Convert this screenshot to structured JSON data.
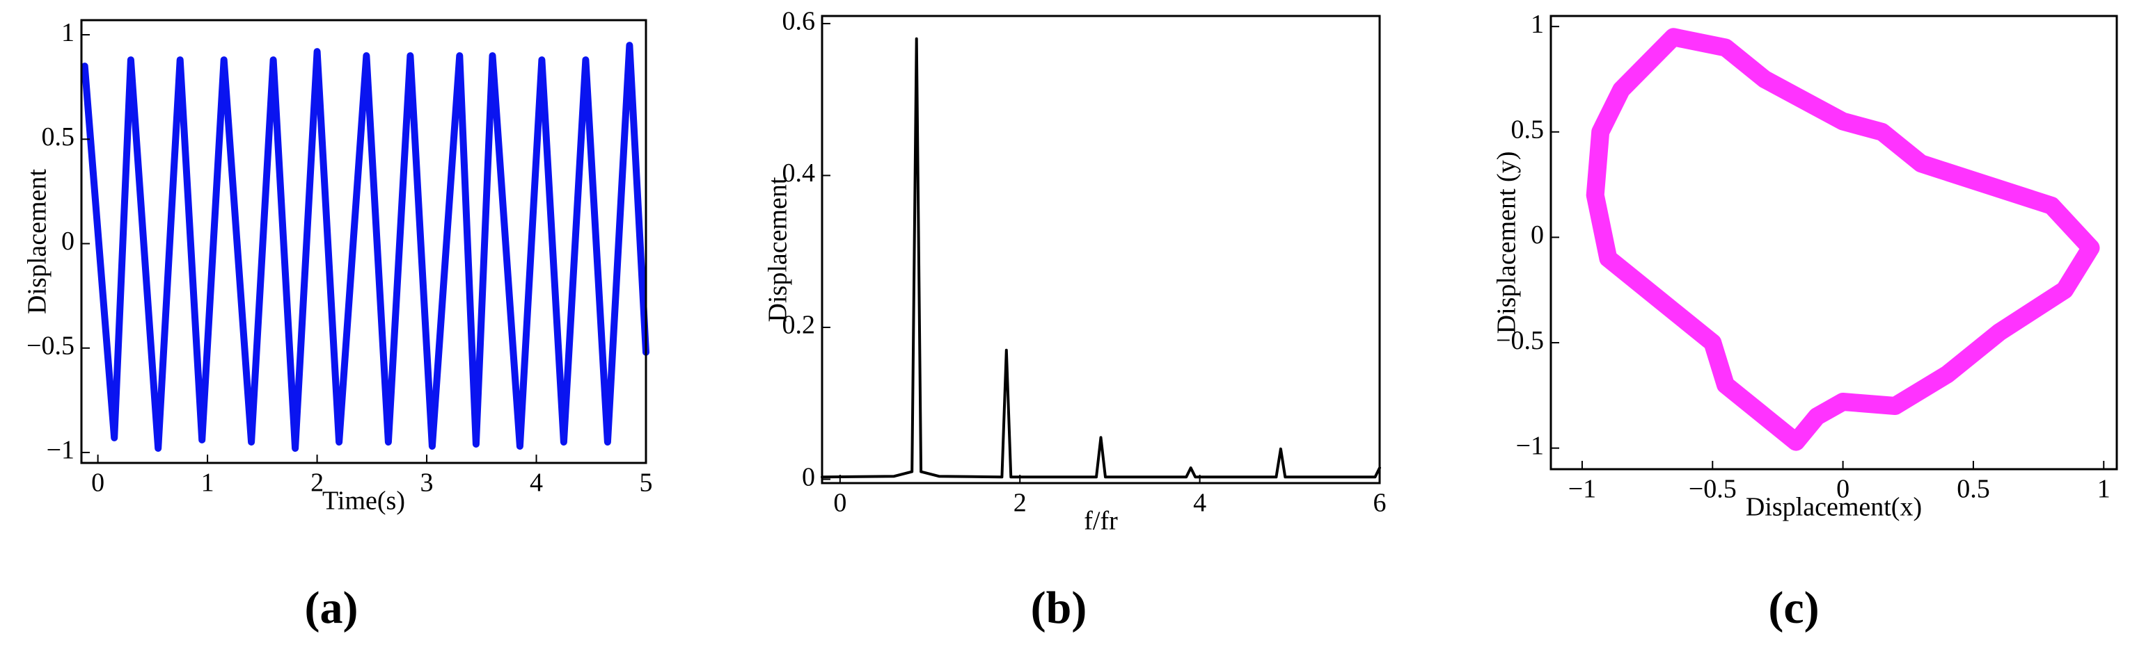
{
  "chart_data": [
    {
      "type": "line",
      "caption": "(a)",
      "xlabel": "Time(s)",
      "ylabel": "Displacement",
      "x": [
        -0.12,
        0.15,
        0.3,
        0.55,
        0.75,
        0.95,
        1.15,
        1.4,
        1.6,
        1.8,
        2.0,
        2.2,
        2.45,
        2.65,
        2.85,
        3.05,
        3.3,
        3.45,
        3.6,
        3.85,
        4.05,
        4.25,
        4.45,
        4.65,
        4.85,
        5.0
      ],
      "series": [
        {
          "color": "#0a14f0",
          "values": [
            0.85,
            -0.93,
            0.88,
            -0.98,
            0.88,
            -0.94,
            0.88,
            -0.95,
            0.88,
            -0.98,
            0.92,
            -0.95,
            0.9,
            -0.95,
            0.9,
            -0.97,
            0.9,
            -0.96,
            0.9,
            -0.97,
            0.88,
            -0.95,
            0.88,
            -0.95,
            0.95,
            -0.52
          ]
        }
      ],
      "xlim": [
        -0.15,
        5
      ],
      "xticks": [
        0,
        1,
        2,
        3,
        4,
        5
      ],
      "ylim": [
        -1.05,
        1.07
      ],
      "yticks": [
        {
          "value": -1,
          "label": "−1"
        },
        {
          "value": -0.5,
          "label": "−0.5"
        },
        0,
        0.5,
        1
      ]
    },
    {
      "type": "line",
      "caption": "(b)",
      "xlabel": "f/fr",
      "ylabel": "Displacement",
      "x": [
        -0.2,
        0.6,
        0.8,
        0.85,
        0.9,
        1.1,
        1.8,
        1.85,
        1.9,
        2.85,
        2.9,
        2.95,
        3.85,
        3.9,
        3.95,
        4.85,
        4.9,
        4.95,
        5.95,
        6.0
      ],
      "series": [
        {
          "color": "#000000",
          "values": [
            0.003,
            0.004,
            0.01,
            0.58,
            0.01,
            0.004,
            0.003,
            0.17,
            0.003,
            0.003,
            0.055,
            0.003,
            0.003,
            0.015,
            0.003,
            0.003,
            0.04,
            0.003,
            0.003,
            0.015
          ]
        }
      ],
      "xlim": [
        -0.2,
        6
      ],
      "xticks": [
        0,
        2,
        4,
        6
      ],
      "ylim": [
        -0.005,
        0.61
      ],
      "yticks": [
        0,
        0.2,
        0.4,
        0.6
      ]
    },
    {
      "type": "line",
      "caption": "(c)",
      "xlabel": "Displacement(x)",
      "ylabel": "Displacement (y)",
      "x": [
        -0.65,
        -0.45,
        -0.3,
        0.0,
        0.15,
        0.3,
        0.55,
        0.8,
        0.95,
        0.85,
        0.6,
        0.4,
        0.2,
        0.0,
        -0.1,
        -0.18,
        -0.3,
        -0.45,
        -0.5,
        -0.7,
        -0.9,
        -0.95,
        -0.93,
        -0.85,
        -0.65
      ],
      "series": [
        {
          "color": "#ff33ff",
          "values": [
            0.95,
            0.9,
            0.75,
            0.55,
            0.5,
            0.35,
            0.25,
            0.15,
            -0.05,
            -0.25,
            -0.45,
            -0.65,
            -0.8,
            -0.78,
            -0.85,
            -0.97,
            -0.85,
            -0.7,
            -0.5,
            -0.3,
            -0.1,
            0.2,
            0.5,
            0.7,
            0.95
          ]
        }
      ],
      "xlim": [
        -1.12,
        1.05
      ],
      "xticks": [
        {
          "value": -1,
          "label": "−1"
        },
        {
          "value": -0.5,
          "label": "−0.5"
        },
        0,
        0.5,
        1
      ],
      "ylim": [
        -1.1,
        1.05
      ],
      "yticks": [
        {
          "value": -1,
          "label": "−1"
        },
        {
          "value": -0.5,
          "label": "−0.5"
        },
        0,
        0.5,
        1
      ]
    }
  ]
}
